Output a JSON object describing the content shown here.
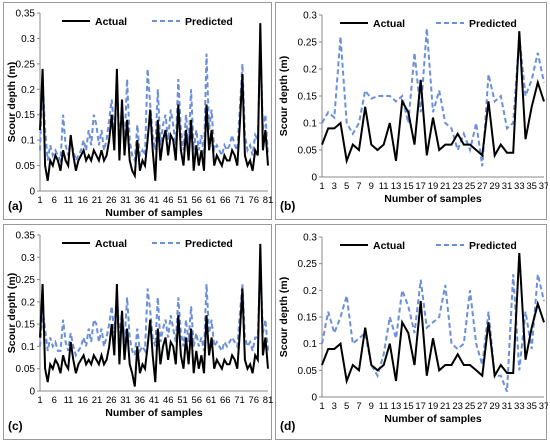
{
  "legend": {
    "actual": "Actual",
    "predicted": "Predicted"
  },
  "colors": {
    "actual": "#000000",
    "predicted": "#6b8fd8",
    "axis": "#888888",
    "red": "#c0504d",
    "green": "#2e7d32"
  },
  "chart_data": [
    {
      "type": "line",
      "panel_label": "(a)",
      "xlabel": "Number of samples",
      "ylabel": "Scour depth (m)",
      "ylim": [
        0,
        0.35
      ],
      "yticks": [
        0,
        0.05,
        0.1,
        0.15,
        0.2,
        0.25,
        0.3,
        0.35
      ],
      "ytick_labels": [
        "0",
        "0.05",
        "0.1",
        "0.15",
        "0.2",
        "0.25",
        "0.3",
        "0.35"
      ],
      "xtick_labels": [
        "1",
        "6",
        "11",
        "16",
        "21",
        "26",
        "31",
        "36",
        "41",
        "46",
        "51",
        "56",
        "61",
        "66",
        "71",
        "76",
        "81"
      ],
      "legend_position": "top",
      "grid": false,
      "series": [
        {
          "name": "Actual",
          "values": [
            0.12,
            0.24,
            0.05,
            0.02,
            0.06,
            0.05,
            0.07,
            0.06,
            0.04,
            0.08,
            0.06,
            0.05,
            0.11,
            0.07,
            0.04,
            0.06,
            0.07,
            0.08,
            0.06,
            0.07,
            0.06,
            0.08,
            0.07,
            0.06,
            0.08,
            0.06,
            0.07,
            0.1,
            0.15,
            0.08,
            0.24,
            0.06,
            0.18,
            0.07,
            0.14,
            0.06,
            0.04,
            0.03,
            0.1,
            0.04,
            0.06,
            0.05,
            0.1,
            0.16,
            0.08,
            0.02,
            0.14,
            0.06,
            0.1,
            0.12,
            0.07,
            0.11,
            0.1,
            0.06,
            0.17,
            0.08,
            0.05,
            0.12,
            0.06,
            0.14,
            0.04,
            0.09,
            0.05,
            0.08,
            0.04,
            0.17,
            0.08,
            0.12,
            0.05,
            0.07,
            0.06,
            0.05,
            0.07,
            0.06,
            0.06,
            0.08,
            0.07,
            0.05,
            0.13,
            0.23,
            0.07,
            0.05,
            0.06,
            0.04,
            0.08,
            0.07,
            0.33,
            0.08,
            0.12,
            0.05
          ]
        },
        {
          "name": "Predicted",
          "values": [
            0.08,
            0.22,
            0.12,
            0.06,
            0.09,
            0.07,
            0.08,
            0.07,
            0.06,
            0.15,
            0.09,
            0.07,
            0.1,
            0.08,
            0.06,
            0.07,
            0.08,
            0.1,
            0.08,
            0.12,
            0.09,
            0.15,
            0.13,
            0.09,
            0.12,
            0.08,
            0.1,
            0.14,
            0.18,
            0.12,
            0.2,
            0.1,
            0.16,
            0.09,
            0.22,
            0.1,
            0.07,
            0.06,
            0.13,
            0.07,
            0.08,
            0.07,
            0.24,
            0.17,
            0.11,
            0.08,
            0.2,
            0.09,
            0.13,
            0.15,
            0.1,
            0.16,
            0.13,
            0.09,
            0.22,
            0.12,
            0.08,
            0.15,
            0.09,
            0.2,
            0.08,
            0.12,
            0.08,
            0.11,
            0.07,
            0.27,
            0.12,
            0.16,
            0.08,
            0.09,
            0.08,
            0.07,
            0.09,
            0.08,
            0.09,
            0.11,
            0.09,
            0.08,
            0.16,
            0.25,
            0.11,
            0.08,
            0.09,
            0.07,
            0.11,
            0.1,
            0.3,
            0.12,
            0.15,
            0.07
          ]
        }
      ]
    },
    {
      "type": "line",
      "panel_label": "(b)",
      "xlabel": "Number of samples",
      "ylabel": "Scour depth (m)",
      "ylim": [
        0,
        0.3
      ],
      "yticks": [
        0,
        0.05,
        0.1,
        0.15,
        0.2,
        0.25,
        0.3
      ],
      "ytick_labels": [
        "0",
        "0.05",
        "0.1",
        "0.15",
        "0.2",
        "0.25",
        "0.3"
      ],
      "xtick_labels": [
        "1",
        "3",
        "5",
        "7",
        "9",
        "11",
        "13",
        "15",
        "17",
        "19",
        "21",
        "23",
        "25",
        "27",
        "29",
        "31",
        "33",
        "35",
        "37"
      ],
      "legend_position": "top",
      "grid": false,
      "series": [
        {
          "name": "Actual",
          "values": [
            0.06,
            0.09,
            0.09,
            0.1,
            0.03,
            0.06,
            0.05,
            0.13,
            0.06,
            0.05,
            0.06,
            0.1,
            0.03,
            0.14,
            0.12,
            0.06,
            0.18,
            0.04,
            0.11,
            0.05,
            0.06,
            0.06,
            0.08,
            0.06,
            0.06,
            0.05,
            0.04,
            0.14,
            0.04,
            0.06,
            0.045,
            0.045,
            0.27,
            0.07,
            0.13,
            0.175,
            0.14
          ]
        },
        {
          "name": "Predicted",
          "values": [
            0.1,
            0.12,
            0.11,
            0.26,
            0.1,
            0.08,
            0.1,
            0.16,
            0.145,
            0.15,
            0.15,
            0.15,
            0.14,
            0.15,
            0.1,
            0.23,
            0.12,
            0.275,
            0.12,
            0.16,
            0.1,
            0.09,
            0.05,
            0.08,
            0.05,
            0.1,
            0.02,
            0.19,
            0.14,
            0.15,
            0.09,
            0.1,
            0.26,
            0.15,
            0.18,
            0.23,
            0.175
          ]
        }
      ]
    },
    {
      "type": "line",
      "panel_label": "(c)",
      "xlabel": "Number of samples",
      "ylabel": "Scour depth (m)",
      "ylim": [
        0,
        0.35
      ],
      "yticks": [
        0,
        0.05,
        0.1,
        0.15,
        0.2,
        0.25,
        0.3,
        0.35
      ],
      "ytick_labels": [
        "0",
        "0.05",
        "0.1",
        "0.15",
        "0.2",
        "0.25",
        "0.3",
        "0.35"
      ],
      "xtick_labels": [
        "1",
        "6",
        "11",
        "16",
        "21",
        "26",
        "31",
        "36",
        "41",
        "46",
        "51",
        "56",
        "61",
        "66",
        "71",
        "76",
        "81"
      ],
      "legend_position": "top",
      "grid": false,
      "series": [
        {
          "name": "Actual",
          "values": [
            0.12,
            0.24,
            0.05,
            0.02,
            0.06,
            0.05,
            0.07,
            0.06,
            0.04,
            0.08,
            0.06,
            0.05,
            0.11,
            0.07,
            0.04,
            0.06,
            0.07,
            0.08,
            0.06,
            0.07,
            0.06,
            0.08,
            0.07,
            0.06,
            0.08,
            0.06,
            0.07,
            0.1,
            0.15,
            0.08,
            0.24,
            0.06,
            0.18,
            0.07,
            0.14,
            0.06,
            0.04,
            0.01,
            0.1,
            0.04,
            0.06,
            0.05,
            0.1,
            0.16,
            0.08,
            0.02,
            0.14,
            0.06,
            0.1,
            0.12,
            0.07,
            0.11,
            0.1,
            0.06,
            0.17,
            0.08,
            0.05,
            0.12,
            0.06,
            0.14,
            0.04,
            0.09,
            0.05,
            0.08,
            0.04,
            0.17,
            0.08,
            0.12,
            0.05,
            0.07,
            0.06,
            0.05,
            0.07,
            0.06,
            0.06,
            0.08,
            0.07,
            0.05,
            0.13,
            0.23,
            0.07,
            0.05,
            0.06,
            0.04,
            0.08,
            0.07,
            0.33,
            0.08,
            0.12,
            0.05
          ]
        },
        {
          "name": "Predicted",
          "values": [
            0.1,
            0.18,
            0.14,
            0.09,
            0.12,
            0.1,
            0.11,
            0.09,
            0.09,
            0.16,
            0.11,
            0.09,
            0.13,
            0.1,
            0.08,
            0.09,
            0.1,
            0.12,
            0.1,
            0.14,
            0.11,
            0.16,
            0.15,
            0.11,
            0.14,
            0.1,
            0.12,
            0.15,
            0.19,
            0.13,
            0.22,
            0.12,
            0.18,
            0.11,
            0.21,
            0.12,
            0.09,
            0.08,
            0.14,
            0.09,
            0.1,
            0.09,
            0.23,
            0.18,
            0.12,
            0.1,
            0.21,
            0.11,
            0.14,
            0.16,
            0.12,
            0.17,
            0.14,
            0.11,
            0.21,
            0.13,
            0.1,
            0.16,
            0.11,
            0.19,
            0.1,
            0.13,
            0.1,
            0.12,
            0.09,
            0.24,
            0.13,
            0.16,
            0.1,
            0.11,
            0.1,
            0.09,
            0.11,
            0.1,
            0.11,
            0.12,
            0.11,
            0.1,
            0.17,
            0.24,
            0.12,
            0.1,
            0.11,
            0.09,
            0.12,
            0.12,
            0.29,
            0.13,
            0.16,
            0.09
          ]
        }
      ]
    },
    {
      "type": "line",
      "panel_label": "(d)",
      "xlabel": "Number of samples",
      "ylabel": "Scour depth (m)",
      "ylim": [
        0,
        0.3
      ],
      "yticks": [
        0,
        0.05,
        0.1,
        0.15,
        0.2,
        0.25,
        0.3
      ],
      "ytick_labels": [
        "0",
        "0.05",
        "0.1",
        "0.15",
        "0.2",
        "0.25",
        "0.3"
      ],
      "xtick_labels": [
        "1",
        "3",
        "5",
        "7",
        "9",
        "11",
        "13",
        "15",
        "17",
        "19",
        "21",
        "23",
        "25",
        "27",
        "29",
        "31",
        "33",
        "35",
        "37"
      ],
      "legend_position": "top",
      "grid": false,
      "series": [
        {
          "name": "Actual",
          "values": [
            0.06,
            0.09,
            0.09,
            0.1,
            0.03,
            0.06,
            0.05,
            0.13,
            0.06,
            0.05,
            0.06,
            0.1,
            0.03,
            0.14,
            0.12,
            0.06,
            0.18,
            0.04,
            0.11,
            0.05,
            0.06,
            0.06,
            0.08,
            0.06,
            0.06,
            0.05,
            0.04,
            0.14,
            0.04,
            0.06,
            0.045,
            0.045,
            0.27,
            0.07,
            0.13,
            0.175,
            0.14
          ]
        },
        {
          "name": "Predicted",
          "values": [
            0.1,
            0.16,
            0.12,
            0.15,
            0.19,
            0.1,
            0.11,
            0.12,
            0.06,
            0.04,
            0.08,
            0.15,
            0.11,
            0.2,
            0.17,
            0.12,
            0.22,
            0.13,
            0.14,
            0.15,
            0.21,
            0.1,
            0.09,
            0.1,
            0.2,
            0.1,
            0.06,
            0.16,
            0.04,
            0.04,
            0.01,
            0.23,
            0.05,
            0.16,
            0.09,
            0.23,
            0.18
          ]
        }
      ]
    }
  ]
}
